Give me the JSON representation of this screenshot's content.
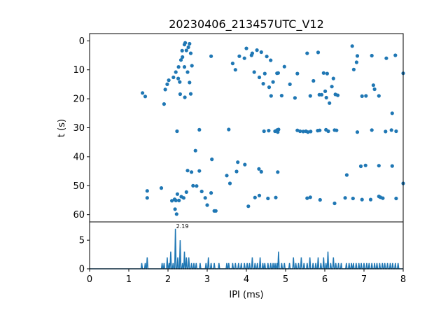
{
  "chart_data": [
    {
      "type": "scatter",
      "title": "20230406_213457UTC_V12",
      "xlabel": "",
      "ylabel": "t (s)",
      "xlim": [
        0,
        8
      ],
      "ylim": [
        62.5,
        -2.5
      ],
      "y_inverted": true,
      "yticks": [
        0,
        10,
        20,
        30,
        40,
        50,
        60
      ],
      "grid": false,
      "color": "#1f77b4",
      "points": [
        [
          1.35,
          18
        ],
        [
          1.42,
          19.2
        ],
        [
          1.9,
          21.8
        ],
        [
          1.93,
          16.8
        ],
        [
          1.98,
          15
        ],
        [
          2.02,
          13.6
        ],
        [
          2.14,
          12.6
        ],
        [
          2.2,
          10.8
        ],
        [
          2.26,
          13
        ],
        [
          2.3,
          14.2
        ],
        [
          2.27,
          9
        ],
        [
          2.33,
          6.6
        ],
        [
          2.37,
          5.6
        ],
        [
          2.36,
          3.4
        ],
        [
          2.42,
          1.3
        ],
        [
          2.44,
          0.7
        ],
        [
          2.47,
          3.3
        ],
        [
          2.52,
          2.2
        ],
        [
          2.55,
          1
        ],
        [
          2.42,
          9
        ],
        [
          2.5,
          10.8
        ],
        [
          2.55,
          14.4
        ],
        [
          2.58,
          18.3
        ],
        [
          2.31,
          18.4
        ],
        [
          2.43,
          19.5
        ],
        [
          2.58,
          4.3
        ],
        [
          2.61,
          8.6
        ],
        [
          3.1,
          5.3
        ],
        [
          2.23,
          31.2
        ],
        [
          2.8,
          30.7
        ],
        [
          3.55,
          30.6
        ],
        [
          3.65,
          7.8
        ],
        [
          3.72,
          10
        ],
        [
          3.82,
          5.3
        ],
        [
          3.95,
          6
        ],
        [
          4.0,
          2.6
        ],
        [
          4.13,
          5
        ],
        [
          4.15,
          4.3
        ],
        [
          4.2,
          10.8
        ],
        [
          4.27,
          3.2
        ],
        [
          4.33,
          12.6
        ],
        [
          4.38,
          3.9
        ],
        [
          4.43,
          14.8
        ],
        [
          4.47,
          11.3
        ],
        [
          4.52,
          5.4
        ],
        [
          4.58,
          16
        ],
        [
          4.62,
          6.7
        ],
        [
          4.63,
          19
        ],
        [
          4.68,
          14.2
        ],
        [
          4.78,
          11.2
        ],
        [
          4.81,
          11.1
        ],
        [
          4.9,
          18.9
        ],
        [
          4.97,
          8.9
        ],
        [
          5.11,
          15
        ],
        [
          5.24,
          19.7
        ],
        [
          5.3,
          11.3
        ],
        [
          5.55,
          4.3
        ],
        [
          5.63,
          19
        ],
        [
          5.71,
          13.8
        ],
        [
          5.83,
          4
        ],
        [
          5.86,
          18.6
        ],
        [
          5.92,
          18.6
        ],
        [
          5.97,
          11.1
        ],
        [
          6.01,
          17.4
        ],
        [
          6.04,
          19.6
        ],
        [
          6.06,
          11.3
        ],
        [
          6.12,
          21.5
        ],
        [
          6.18,
          15.8
        ],
        [
          6.22,
          13
        ],
        [
          6.27,
          18.5
        ],
        [
          6.33,
          18.8
        ],
        [
          6.7,
          1.8
        ],
        [
          6.74,
          9.9
        ],
        [
          6.81,
          7.4
        ],
        [
          6.83,
          5.2
        ],
        [
          6.95,
          19.1
        ],
        [
          7.05,
          19
        ],
        [
          7.2,
          5.1
        ],
        [
          7.24,
          15.3
        ],
        [
          7.27,
          16.7
        ],
        [
          7.38,
          19
        ],
        [
          7.57,
          6
        ],
        [
          7.72,
          25
        ],
        [
          7.8,
          5
        ],
        [
          8.0,
          11.2
        ],
        [
          4.45,
          31.2
        ],
        [
          4.57,
          31
        ],
        [
          4.73,
          31.2
        ],
        [
          4.78,
          30.8
        ],
        [
          4.8,
          31.5
        ],
        [
          4.82,
          30.6
        ],
        [
          5.3,
          30.9
        ],
        [
          5.37,
          31.2
        ],
        [
          5.45,
          31.3
        ],
        [
          5.52,
          31.2
        ],
        [
          5.57,
          31.5
        ],
        [
          5.64,
          31.3
        ],
        [
          5.82,
          31
        ],
        [
          5.87,
          30.9
        ],
        [
          6.03,
          30.7
        ],
        [
          6.09,
          31.2
        ],
        [
          6.25,
          30.8
        ],
        [
          6.3,
          30.9
        ],
        [
          6.83,
          31.5
        ],
        [
          7.2,
          30.8
        ],
        [
          7.55,
          31.3
        ],
        [
          7.7,
          30.8
        ],
        [
          7.82,
          31.2
        ],
        [
          2.7,
          37.9
        ],
        [
          3.12,
          40.9
        ],
        [
          2.5,
          44.8
        ],
        [
          2.6,
          45.3
        ],
        [
          2.8,
          44.9
        ],
        [
          3.5,
          46.5
        ],
        [
          3.58,
          49.2
        ],
        [
          3.78,
          41.9
        ],
        [
          3.75,
          45.1
        ],
        [
          3.96,
          42.7
        ],
        [
          4.32,
          44.2
        ],
        [
          4.38,
          45.2
        ],
        [
          4.8,
          45.3
        ],
        [
          6.56,
          46.3
        ],
        [
          6.92,
          43.3
        ],
        [
          7.04,
          43
        ],
        [
          7.38,
          43.1
        ],
        [
          7.72,
          43.2
        ],
        [
          1.47,
          51.8
        ],
        [
          1.47,
          54.2
        ],
        [
          1.83,
          50.8
        ],
        [
          2.1,
          55.2
        ],
        [
          2.17,
          54.7
        ],
        [
          2.2,
          55.1
        ],
        [
          2.24,
          52.9
        ],
        [
          2.28,
          55.1
        ],
        [
          2.34,
          53.8
        ],
        [
          2.4,
          54.2
        ],
        [
          2.47,
          52.2
        ],
        [
          2.64,
          50
        ],
        [
          2.73,
          50.1
        ],
        [
          2.86,
          52
        ],
        [
          2.95,
          54.2
        ],
        [
          3.1,
          52.5
        ],
        [
          2.18,
          58.1
        ],
        [
          2.22,
          59.8
        ],
        [
          3.0,
          56.7
        ],
        [
          3.18,
          58.7
        ],
        [
          3.22,
          58.7
        ],
        [
          4.05,
          57.1
        ],
        [
          4.22,
          54.1
        ],
        [
          4.33,
          53.4
        ],
        [
          4.55,
          54.4
        ],
        [
          4.75,
          54.1
        ],
        [
          5.55,
          54.3
        ],
        [
          5.63,
          54
        ],
        [
          5.88,
          54.9
        ],
        [
          6.25,
          56.1
        ],
        [
          6.52,
          54.2
        ],
        [
          6.72,
          54.4
        ],
        [
          6.95,
          54.8
        ],
        [
          7.17,
          54.8
        ],
        [
          7.38,
          53.7
        ],
        [
          7.42,
          54
        ],
        [
          7.48,
          54.3
        ],
        [
          7.82,
          54.4
        ],
        [
          8.0,
          49.2
        ]
      ]
    },
    {
      "type": "line",
      "xlabel": "IPI (ms)",
      "ylabel": "",
      "xlim": [
        0,
        8
      ],
      "ylim": [
        0,
        8.2
      ],
      "xticks": [
        0,
        1,
        2,
        3,
        4,
        5,
        6,
        7,
        8
      ],
      "yticks": [
        0,
        5
      ],
      "grid": false,
      "color": "#1f77b4",
      "annotation": "2.19",
      "peak": {
        "x": 2.19,
        "y": 7
      },
      "spikes": [
        [
          1.33,
          1
        ],
        [
          1.42,
          1
        ],
        [
          1.47,
          2
        ],
        [
          1.85,
          1
        ],
        [
          1.9,
          1
        ],
        [
          1.98,
          2
        ],
        [
          2.03,
          1
        ],
        [
          2.07,
          3
        ],
        [
          2.13,
          1
        ],
        [
          2.19,
          7
        ],
        [
          2.25,
          2
        ],
        [
          2.31,
          5
        ],
        [
          2.37,
          1
        ],
        [
          2.42,
          3
        ],
        [
          2.47,
          2
        ],
        [
          2.53,
          2
        ],
        [
          2.6,
          1
        ],
        [
          2.66,
          1
        ],
        [
          2.72,
          1
        ],
        [
          2.82,
          1
        ],
        [
          2.97,
          1
        ],
        [
          3.03,
          2
        ],
        [
          3.1,
          1
        ],
        [
          3.18,
          1
        ],
        [
          3.3,
          1
        ],
        [
          3.5,
          1
        ],
        [
          3.55,
          1
        ],
        [
          3.65,
          1
        ],
        [
          3.72,
          1
        ],
        [
          3.8,
          1
        ],
        [
          3.87,
          1
        ],
        [
          3.95,
          1
        ],
        [
          4.02,
          1
        ],
        [
          4.08,
          1
        ],
        [
          4.15,
          2
        ],
        [
          4.22,
          1
        ],
        [
          4.28,
          1
        ],
        [
          4.35,
          2
        ],
        [
          4.42,
          1
        ],
        [
          4.47,
          1
        ],
        [
          4.55,
          1
        ],
        [
          4.62,
          1
        ],
        [
          4.68,
          1
        ],
        [
          4.73,
          1
        ],
        [
          4.78,
          1
        ],
        [
          4.82,
          3
        ],
        [
          4.9,
          1
        ],
        [
          4.97,
          1
        ],
        [
          5.1,
          1
        ],
        [
          5.2,
          2
        ],
        [
          5.26,
          1
        ],
        [
          5.33,
          1
        ],
        [
          5.4,
          2
        ],
        [
          5.47,
          1
        ],
        [
          5.55,
          1
        ],
        [
          5.62,
          2
        ],
        [
          5.7,
          1
        ],
        [
          5.77,
          1
        ],
        [
          5.83,
          2
        ],
        [
          5.9,
          1
        ],
        [
          5.97,
          2
        ],
        [
          6.03,
          1
        ],
        [
          6.08,
          3
        ],
        [
          6.15,
          1
        ],
        [
          6.22,
          2
        ],
        [
          6.28,
          1
        ],
        [
          6.35,
          1
        ],
        [
          6.42,
          1
        ],
        [
          6.55,
          1
        ],
        [
          6.62,
          1
        ],
        [
          6.68,
          1
        ],
        [
          6.73,
          1
        ],
        [
          6.8,
          1
        ],
        [
          6.87,
          1
        ],
        [
          6.93,
          1
        ],
        [
          7.0,
          1
        ],
        [
          7.07,
          1
        ],
        [
          7.13,
          1
        ],
        [
          7.2,
          1
        ],
        [
          7.27,
          1
        ],
        [
          7.33,
          1
        ],
        [
          7.4,
          1
        ],
        [
          7.47,
          1
        ],
        [
          7.53,
          1
        ],
        [
          7.6,
          1
        ],
        [
          7.67,
          1
        ],
        [
          7.73,
          1
        ],
        [
          7.8,
          1
        ],
        [
          7.87,
          1
        ]
      ]
    }
  ]
}
